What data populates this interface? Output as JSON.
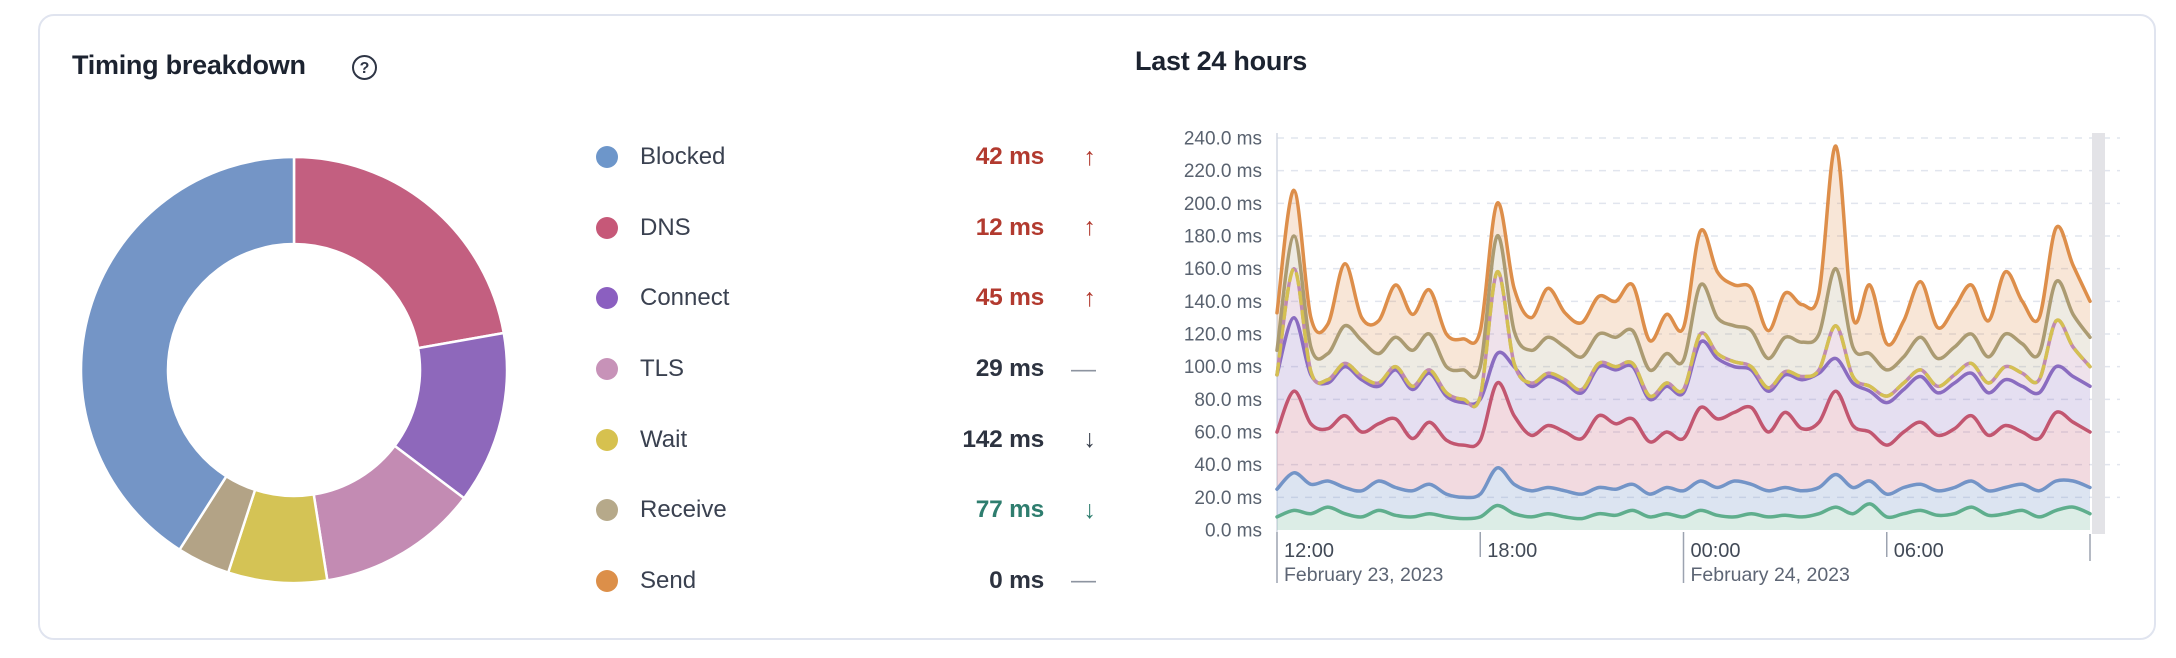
{
  "panel": {
    "title": "Timing breakdown",
    "help_icon_glyph": "?",
    "chart_title": "Last 24 hours"
  },
  "colors": {
    "card_border": "#e0e4ef",
    "title_text": "#1c2330",
    "label_text": "#3a4150",
    "value_dark": "#2d3340",
    "value_red": "#b23a2f",
    "value_teal": "#2e7d6e",
    "trend_flat_gray": "#8d94a0",
    "trend_down_dark": "#39404d",
    "grid_line": "#e1e5ee",
    "axis_line": "#d4d9e3",
    "tick_line": "#9ca3b0",
    "y_label_text": "#59626f",
    "x_time_text": "#424a57",
    "x_date_text": "#5d6574",
    "scrollbar_gray": "#e3e3e7"
  },
  "legend": [
    {
      "label": "Blocked",
      "dot_color": "#6d96ca",
      "value": "42 ms",
      "value_color": "#b23a2f",
      "trend": "up",
      "trend_color": "#b23a2f"
    },
    {
      "label": "DNS",
      "dot_color": "#c65878",
      "value": "12 ms",
      "value_color": "#b23a2f",
      "trend": "up",
      "trend_color": "#b23a2f"
    },
    {
      "label": "Connect",
      "dot_color": "#8b5fc0",
      "value": "45 ms",
      "value_color": "#b23a2f",
      "trend": "up",
      "trend_color": "#b23a2f"
    },
    {
      "label": "TLS",
      "dot_color": "#c792b8",
      "value": "29 ms",
      "value_color": "#2d3340",
      "trend": "flat",
      "trend_color": "#8d94a0"
    },
    {
      "label": "Wait",
      "dot_color": "#d6c14f",
      "value": "142 ms",
      "value_color": "#2d3340",
      "trend": "down",
      "trend_color": "#39404d"
    },
    {
      "label": "Receive",
      "dot_color": "#b6a98a",
      "value": "77 ms",
      "value_color": "#2e7d6e",
      "trend": "down",
      "trend_color": "#2e7d6e"
    },
    {
      "label": "Send",
      "dot_color": "#dc8f49",
      "value": "0 ms",
      "value_color": "#2d3340",
      "trend": "flat",
      "trend_color": "#8d94a0"
    }
  ],
  "donut": {
    "start_at_top_clockwise": true,
    "segments": [
      {
        "label": "DNS",
        "sweep_deg": 80,
        "color": "#c35f80"
      },
      {
        "label": "Connect",
        "sweep_deg": 47,
        "color": "#8e68bb"
      },
      {
        "label": "TLS",
        "sweep_deg": 44,
        "color": "#c38bb3"
      },
      {
        "label": "Wait",
        "sweep_deg": 27,
        "color": "#d4c355"
      },
      {
        "label": "Receive",
        "sweep_deg": 14.5,
        "color": "#b3a386"
      },
      {
        "label": "Blocked",
        "sweep_deg": 147.5,
        "color": "#7495c6"
      }
    ]
  },
  "chart_data": {
    "type": "area",
    "stacked": true,
    "title": "Last 24 hours",
    "x_window": "12:00 February 23, 2023 to ~12:00 February 24, 2023 (24 h)",
    "x_hours": [
      0,
      0.5,
      1,
      1.5,
      2,
      2.5,
      3,
      3.5,
      4,
      4.5,
      5,
      5.5,
      6,
      6.5,
      7,
      7.5,
      8,
      8.5,
      9,
      9.5,
      10,
      10.5,
      11,
      11.5,
      12,
      12.5,
      13,
      13.5,
      14,
      14.5,
      15,
      15.5,
      16,
      16.5,
      17,
      17.5,
      18,
      18.5,
      19,
      19.5,
      20,
      20.5,
      21,
      21.5,
      22,
      22.5,
      23,
      23.5,
      24
    ],
    "x_ticks": [
      {
        "t": 0,
        "label": "12:00",
        "date": "February 23, 2023",
        "long_tick": true
      },
      {
        "t": 6,
        "label": "18:00",
        "long_tick": false
      },
      {
        "t": 12,
        "label": "00:00",
        "date": "February 24, 2023",
        "long_tick": true
      },
      {
        "t": 18,
        "label": "06:00",
        "long_tick": false
      }
    ],
    "y_axis": {
      "min": 0,
      "max": 240,
      "step": 20,
      "unit": "ms",
      "tick_labels": [
        "0.0 ms",
        "20.0 ms",
        "40.0 ms",
        "60.0 ms",
        "80.0 ms",
        "100.0 ms",
        "120.0 ms",
        "140.0 ms",
        "160.0 ms",
        "180.0 ms",
        "200.0 ms",
        "220.0 ms",
        "240.0 ms"
      ]
    },
    "grid": "horizontal dashed",
    "values_are": "cumulative_stack_tops_ms",
    "series": [
      {
        "name": "teal",
        "color": "#5fae8d",
        "fill": "rgba(95,174,141,0.22)",
        "dashed": false,
        "tops": [
          8,
          12,
          10,
          14,
          10,
          8,
          12,
          9,
          8,
          10,
          8,
          7,
          8,
          15,
          10,
          8,
          10,
          8,
          7,
          10,
          9,
          12,
          8,
          10,
          8,
          12,
          9,
          8,
          10,
          8,
          9,
          8,
          10,
          14,
          10,
          16,
          8,
          10,
          12,
          9,
          10,
          14,
          9,
          10,
          12,
          8,
          12,
          14,
          10
        ]
      },
      {
        "name": "blue",
        "color": "#7394c7",
        "fill": "rgba(115,148,199,0.25)",
        "dashed": false,
        "tops": [
          25,
          35,
          28,
          30,
          26,
          24,
          30,
          26,
          24,
          28,
          22,
          20,
          22,
          38,
          28,
          24,
          26,
          24,
          22,
          26,
          25,
          28,
          22,
          26,
          24,
          30,
          26,
          30,
          28,
          24,
          26,
          24,
          26,
          34,
          26,
          30,
          22,
          26,
          28,
          24,
          26,
          30,
          24,
          26,
          28,
          24,
          30,
          30,
          26
        ]
      },
      {
        "name": "crimson",
        "color": "#c25670",
        "fill": "rgba(194,86,112,0.22)",
        "dashed": false,
        "tops": [
          60,
          85,
          65,
          62,
          70,
          60,
          65,
          68,
          56,
          66,
          55,
          52,
          55,
          90,
          70,
          58,
          64,
          60,
          56,
          70,
          65,
          68,
          54,
          60,
          56,
          75,
          68,
          72,
          75,
          60,
          72,
          62,
          66,
          85,
          64,
          60,
          52,
          60,
          66,
          58,
          62,
          70,
          58,
          64,
          60,
          56,
          72,
          66,
          60
        ]
      },
      {
        "name": "purple",
        "color": "#8a6cc0",
        "fill": "rgba(138,108,192,0.22)",
        "dashed": false,
        "tops": [
          95,
          130,
          95,
          90,
          100,
          92,
          88,
          98,
          86,
          96,
          82,
          78,
          80,
          108,
          100,
          88,
          94,
          90,
          84,
          100,
          98,
          100,
          80,
          88,
          84,
          115,
          105,
          100,
          98,
          85,
          95,
          92,
          96,
          105,
          90,
          85,
          78,
          86,
          94,
          84,
          90,
          96,
          84,
          92,
          88,
          84,
          100,
          94,
          88
        ]
      },
      {
        "name": "mauve (yellow dashed)",
        "color": "#c08ab0",
        "dash_color": "#d4c052",
        "fill": "rgba(192,138,176,0.25)",
        "dashed": true,
        "tops": [
          95,
          160,
          97,
          92,
          102,
          94,
          90,
          100,
          88,
          98,
          84,
          80,
          82,
          158,
          102,
          90,
          96,
          92,
          86,
          102,
          100,
          102,
          82,
          90,
          86,
          120,
          108,
          103,
          100,
          87,
          97,
          94,
          98,
          125,
          94,
          88,
          82,
          90,
          98,
          88,
          95,
          102,
          90,
          100,
          96,
          92,
          128,
          112,
          100
        ]
      },
      {
        "name": "tan",
        "color": "#ab9b72",
        "fill": "rgba(171,155,114,0.20)",
        "dashed": false,
        "tops": [
          110,
          180,
          112,
          108,
          125,
          116,
          108,
          118,
          110,
          120,
          100,
          98,
          100,
          180,
          122,
          110,
          118,
          112,
          106,
          120,
          118,
          122,
          98,
          108,
          104,
          150,
          130,
          125,
          122,
          105,
          118,
          115,
          120,
          160,
          112,
          108,
          98,
          106,
          118,
          105,
          112,
          120,
          106,
          120,
          114,
          108,
          152,
          132,
          118
        ]
      },
      {
        "name": "orange",
        "color": "#dd8e4a",
        "fill": "rgba(221,142,74,0.22)",
        "dashed": false,
        "tops": [
          133,
          208,
          130,
          126,
          163,
          130,
          128,
          150,
          132,
          147,
          120,
          117,
          122,
          200,
          148,
          130,
          148,
          133,
          127,
          143,
          140,
          150,
          116,
          132,
          124,
          183,
          158,
          150,
          148,
          122,
          145,
          138,
          145,
          235,
          130,
          150,
          114,
          128,
          152,
          124,
          136,
          150,
          128,
          158,
          140,
          130,
          185,
          162,
          140
        ]
      }
    ]
  }
}
